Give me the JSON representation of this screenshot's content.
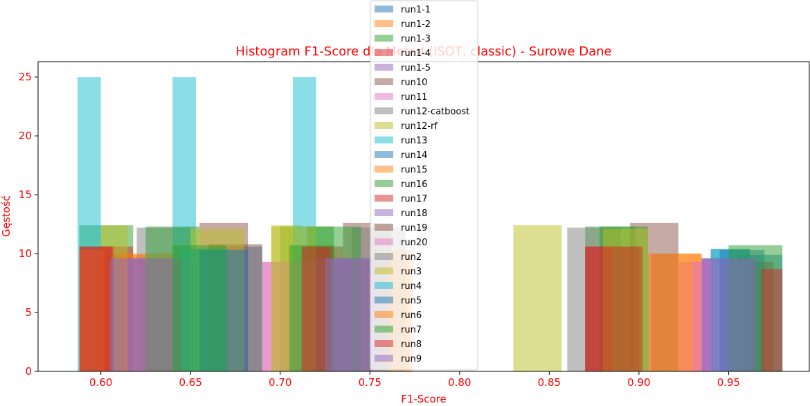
{
  "chart_data": {
    "type": "histogram",
    "title": "Histogram F1-Score dla Metod (ISOT, classic) - Surowe Dane",
    "xlabel": "F1-Score",
    "ylabel": "Gęstość",
    "xlim": [
      0.565,
      0.995
    ],
    "ylim": [
      0,
      26.3
    ],
    "x_ticks": [
      "0.60",
      "0.65",
      "0.70",
      "0.75",
      "0.80",
      "0.85",
      "0.90",
      "0.95"
    ],
    "x_tick_values": [
      0.6,
      0.65,
      0.7,
      0.75,
      0.8,
      0.85,
      0.9,
      0.95
    ],
    "y_ticks": [
      "0",
      "5",
      "10",
      "15",
      "20",
      "25"
    ],
    "y_tick_values": [
      0,
      5,
      10,
      15,
      20,
      25
    ],
    "grid": false,
    "legend_position": "top-center",
    "title_color": "#ff0000",
    "label_color": "#ff0000",
    "series": [
      {
        "name": "run1-1",
        "color": "#1f77b4",
        "bars": [
          [
            0.66,
            0.69,
            10.6
          ],
          [
            0.955,
            0.98,
            9.9
          ]
        ]
      },
      {
        "name": "run1-2",
        "color": "#ff7f0e",
        "bars": [
          [
            0.595,
            0.625,
            9.9
          ],
          [
            0.75,
            0.772,
            9.5
          ],
          [
            0.907,
            0.935,
            10.0
          ]
        ]
      },
      {
        "name": "run1-3",
        "color": "#2ca02c",
        "bars": [
          [
            0.588,
            0.618,
            12.4
          ],
          [
            0.7,
            0.73,
            12.3
          ],
          [
            0.87,
            0.898,
            12.3
          ]
        ]
      },
      {
        "name": "run1-4",
        "color": "#d62728",
        "bars": [
          [
            0.6,
            0.618,
            10.6
          ],
          [
            0.718,
            0.735,
            10.6
          ],
          [
            0.88,
            0.9,
            10.6
          ]
        ]
      },
      {
        "name": "run1-5",
        "color": "#9467bd",
        "bars": [
          [
            0.605,
            0.64,
            9.6
          ],
          [
            0.72,
            0.76,
            9.6
          ],
          [
            0.935,
            0.965,
            9.6
          ]
        ]
      },
      {
        "name": "run10",
        "color": "#8c564b",
        "bars": [
          [
            0.655,
            0.682,
            12.6
          ],
          [
            0.735,
            0.762,
            12.6
          ],
          [
            0.895,
            0.922,
            12.6
          ]
        ]
      },
      {
        "name": "run11",
        "color": "#e377c2",
        "bars": [
          [
            0.69,
            0.71,
            9.3
          ],
          [
            0.922,
            0.942,
            9.3
          ]
        ]
      },
      {
        "name": "run12-catboost",
        "color": "#7f7f7f",
        "bars": [
          [
            0.62,
            0.65,
            12.2
          ],
          [
            0.74,
            0.77,
            12.2
          ],
          [
            0.86,
            0.89,
            12.2
          ]
        ]
      },
      {
        "name": "run12-rf",
        "color": "#bcbd22",
        "bars": [
          [
            0.6,
            0.615,
            12.4
          ],
          [
            0.695,
            0.712,
            12.4
          ],
          [
            0.83,
            0.857,
            12.4
          ]
        ]
      },
      {
        "name": "run13",
        "color": "#17becf",
        "bars": [
          [
            0.587,
            0.6,
            25.0
          ],
          [
            0.64,
            0.653,
            25.0
          ],
          [
            0.707,
            0.72,
            25.0
          ]
        ]
      },
      {
        "name": "run14",
        "color": "#1f77b4",
        "bars": [
          [
            0.65,
            0.672,
            10.4
          ],
          [
            0.94,
            0.962,
            10.4
          ]
        ]
      },
      {
        "name": "run15",
        "color": "#ff7f0e",
        "bars": [
          [
            0.61,
            0.64,
            10.0
          ],
          [
            0.905,
            0.935,
            10.0
          ]
        ]
      },
      {
        "name": "run16",
        "color": "#2ca02c",
        "bars": [
          [
            0.625,
            0.655,
            12.3
          ],
          [
            0.715,
            0.745,
            12.3
          ],
          [
            0.878,
            0.905,
            12.3
          ]
        ]
      },
      {
        "name": "run17",
        "color": "#d62728",
        "bars": [
          [
            0.588,
            0.606,
            10.6
          ],
          [
            0.712,
            0.73,
            10.6
          ],
          [
            0.87,
            0.885,
            10.6
          ]
        ]
      },
      {
        "name": "run18",
        "color": "#9467bd",
        "bars": [
          [
            0.615,
            0.645,
            9.6
          ],
          [
            0.71,
            0.74,
            9.6
          ],
          [
            0.935,
            0.965,
            9.6
          ]
        ]
      },
      {
        "name": "run19",
        "color": "#8c564b",
        "bars": [
          [
            0.66,
            0.69,
            10.8
          ],
          [
            0.945,
            0.975,
            9.3
          ]
        ]
      },
      {
        "name": "run20",
        "color": "#e377c2",
        "bars": [
          [
            0.69,
            0.72,
            9.3
          ],
          [
            0.93,
            0.958,
            9.3
          ]
        ]
      },
      {
        "name": "run2",
        "color": "#7f7f7f",
        "bars": [
          [
            0.625,
            0.655,
            9.6
          ],
          [
            0.73,
            0.76,
            9.6
          ]
        ]
      },
      {
        "name": "run3",
        "color": "#bcbd22",
        "bars": [
          [
            0.65,
            0.68,
            12.1
          ],
          [
            0.695,
            0.72,
            12.3
          ],
          [
            0.88,
            0.905,
            12.1
          ]
        ]
      },
      {
        "name": "run4",
        "color": "#17becf",
        "bars": [
          [
            0.645,
            0.67,
            10.4
          ],
          [
            0.94,
            0.962,
            10.4
          ]
        ]
      },
      {
        "name": "run5",
        "color": "#1f77b4",
        "bars": [
          [
            0.655,
            0.682,
            10.3
          ],
          [
            0.945,
            0.97,
            10.3
          ]
        ]
      },
      {
        "name": "run6",
        "color": "#ff7f0e",
        "bars": [
          [
            0.588,
            0.602,
            10.3
          ],
          [
            0.76,
            0.774,
            10.3
          ]
        ]
      },
      {
        "name": "run7",
        "color": "#2ca02c",
        "bars": [
          [
            0.64,
            0.67,
            10.7
          ],
          [
            0.705,
            0.73,
            10.7
          ],
          [
            0.95,
            0.98,
            10.7
          ]
        ]
      },
      {
        "name": "run8",
        "color": "#d62728",
        "bars": [
          [
            0.588,
            0.607,
            10.6
          ],
          [
            0.712,
            0.728,
            10.6
          ],
          [
            0.87,
            0.902,
            10.6
          ],
          [
            0.968,
            0.98,
            8.7
          ]
        ]
      },
      {
        "name": "run9",
        "color": "#9467bd",
        "bars": [
          [
            0.605,
            0.625,
            9.6
          ],
          [
            0.725,
            0.755,
            9.6
          ],
          [
            0.935,
            0.965,
            9.6
          ]
        ]
      }
    ]
  }
}
